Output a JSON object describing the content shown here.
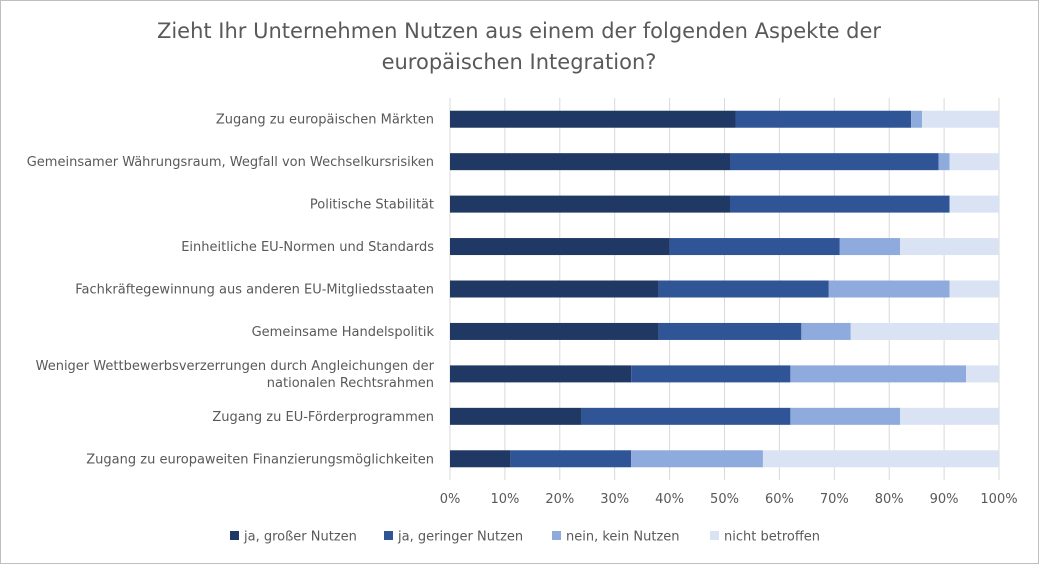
{
  "chart_data": {
    "type": "bar",
    "orientation": "horizontal",
    "stacked": "100%",
    "title": "Zieht Ihr Unternehmen Nutzen aus einem der folgenden Aspekte der europäischen Integration?",
    "categories": [
      "Zugang zu europäischen Märkten",
      "Gemeinsamer Währungsraum, Wegfall von Wechselkursrisiken",
      "Politische Stabilität",
      "Einheitliche EU-Normen und Standards",
      "Fachkräftegewinnung aus anderen EU-Mitgliedsstaaten",
      "Gemeinsame Handelspolitik",
      "Weniger Wettbewerbsverzerrungen durch Angleichungen der nationalen Rechtsrahmen",
      "Zugang zu EU-Förderprogrammen",
      "Zugang zu europaweiten Finanzierungsmöglichkeiten"
    ],
    "category_lines": [
      [
        "Zugang zu europäischen Märkten"
      ],
      [
        "Gemeinsamer Währungsraum, Wegfall von Wechselkursrisiken"
      ],
      [
        "Politische Stabilität"
      ],
      [
        "Einheitliche EU-Normen und Standards"
      ],
      [
        "Fachkräftegewinnung aus anderen EU-Mitgliedsstaaten"
      ],
      [
        "Gemeinsame Handelspolitik"
      ],
      [
        "Weniger Wettbewerbsverzerrungen durch Angleichungen der",
        "nationalen Rechtsrahmen"
      ],
      [
        "Zugang zu EU-Förderprogrammen"
      ],
      [
        "Zugang zu europaweiten Finanzierungsmöglichkeiten"
      ]
    ],
    "series": [
      {
        "name": "ja, großer Nutzen",
        "color": "#203864",
        "values": [
          52,
          51,
          51,
          40,
          38,
          38,
          33,
          24,
          11
        ]
      },
      {
        "name": "ja, geringer Nutzen",
        "color": "#2F5597",
        "values": [
          32,
          38,
          40,
          31,
          31,
          26,
          29,
          38,
          22
        ]
      },
      {
        "name": "nein, kein Nutzen",
        "color": "#8FAADC",
        "values": [
          2,
          2,
          0,
          11,
          22,
          9,
          32,
          20,
          24
        ]
      },
      {
        "name": "nicht betroffen",
        "color": "#DAE3F3",
        "values": [
          14,
          9,
          9,
          18,
          9,
          27,
          6,
          18,
          43
        ]
      }
    ],
    "xlim": [
      0,
      100
    ],
    "xticks": [
      "0%",
      "10%",
      "20%",
      "30%",
      "40%",
      "50%",
      "60%",
      "70%",
      "80%",
      "90%",
      "100%"
    ],
    "grid": true,
    "legend_position": "bottom"
  }
}
